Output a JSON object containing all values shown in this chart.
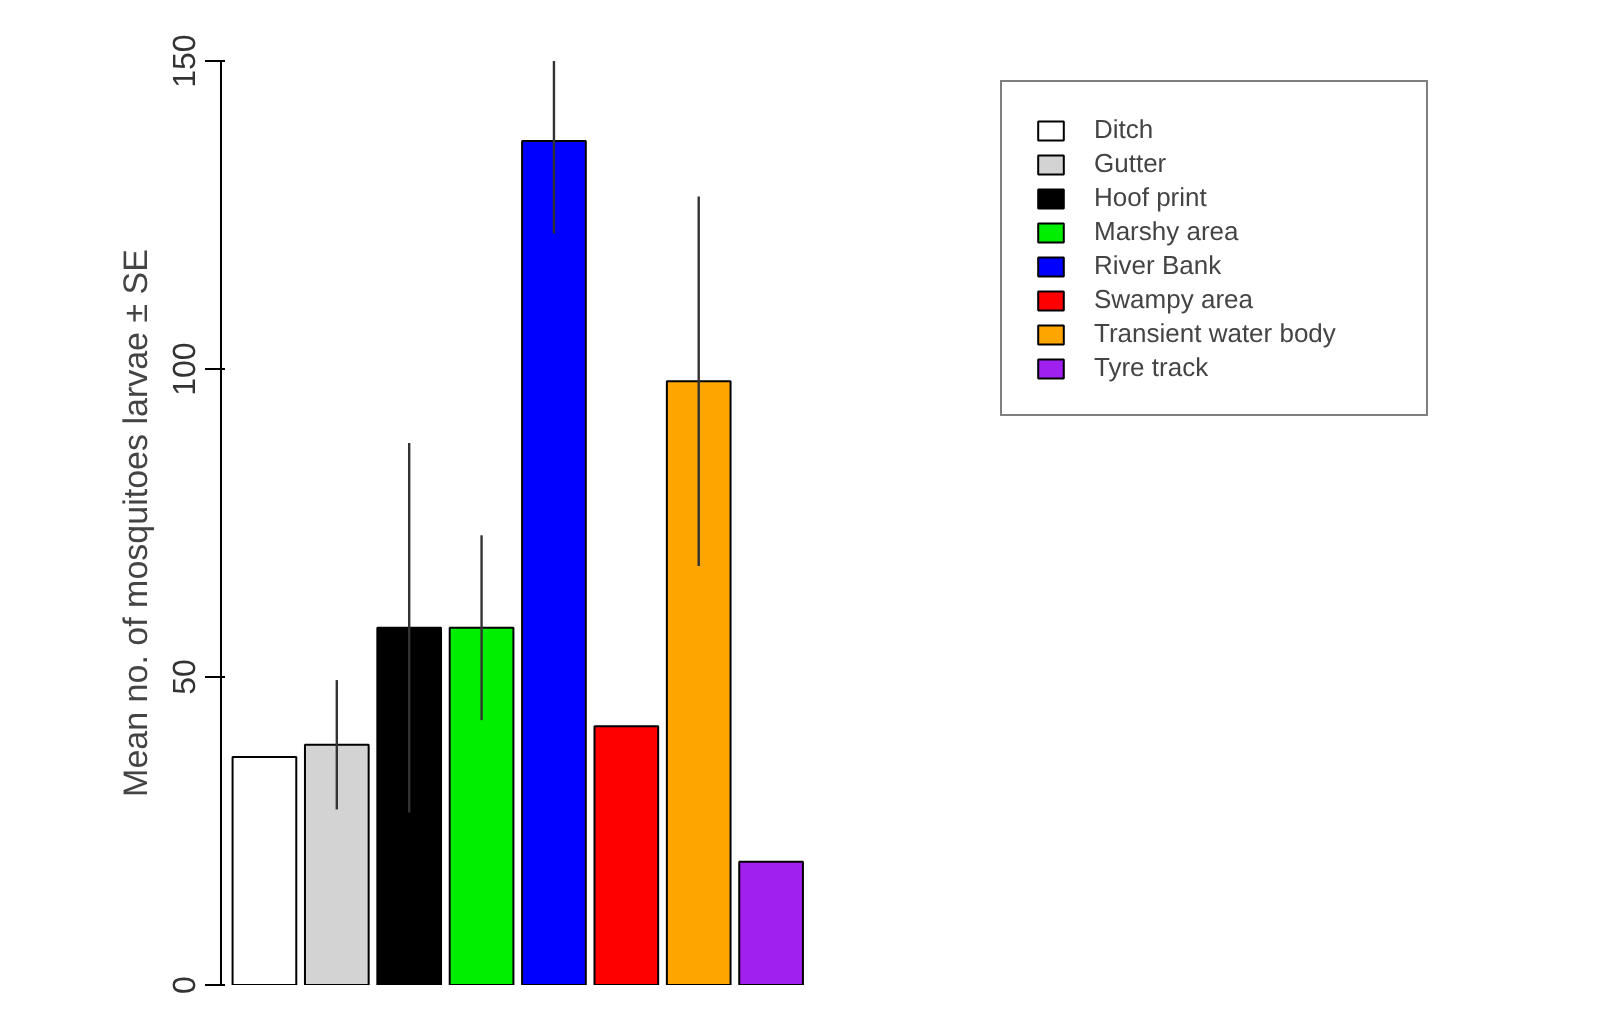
{
  "chart_data": {
    "type": "bar",
    "ylabel": "Mean no. of mosquitoes larvae ± SE",
    "categories": [
      null
    ],
    "ylim": [
      0,
      150
    ],
    "yticks": [
      0,
      50,
      100,
      150
    ],
    "legend": "right",
    "grid": false,
    "tick_labels": "y",
    "series": [
      {
        "name": "Ditch",
        "color": "#ffffff",
        "values": [
          37
        ]
      },
      {
        "name": "Gutter",
        "color": "#d3d3d3",
        "values": [
          39
        ],
        "errors": [
          10.5
        ]
      },
      {
        "name": "Hoof print",
        "color": "#000000",
        "values": [
          58
        ],
        "errors": [
          30
        ]
      },
      {
        "name": "Marshy area",
        "color": "#00ee00",
        "values": [
          58
        ],
        "errors": [
          15
        ]
      },
      {
        "name": "River Bank",
        "color": "#0000ff",
        "values": [
          137
        ],
        "errors": [
          [
            122,
            150
          ]
        ]
      },
      {
        "name": "Swampy area",
        "color": "#ff0000",
        "values": [
          42
        ]
      },
      {
        "name": "Transient water body",
        "color": "#ffa500",
        "values": [
          98
        ],
        "errors": [
          30
        ]
      },
      {
        "name": "Tyre track",
        "color": "#a020f0",
        "values": [
          20
        ]
      }
    ]
  }
}
